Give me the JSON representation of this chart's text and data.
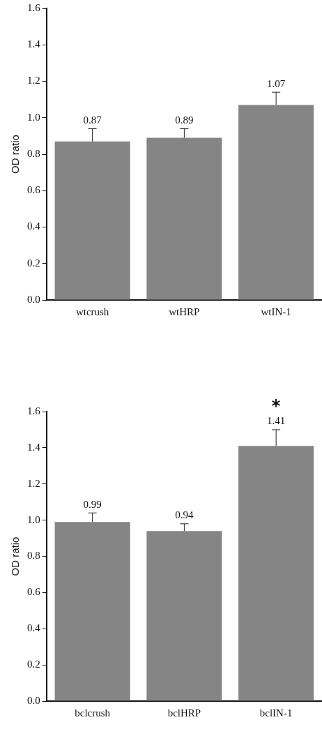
{
  "chart_data": [
    {
      "type": "bar",
      "ylabel": "OD ratio",
      "categories": [
        "wtcrush",
        "wtHRP",
        "wtIN-1"
      ],
      "values": [
        0.87,
        0.89,
        1.07
      ],
      "color": "#858585",
      "errors": [
        [
          0.87,
          0.94
        ],
        [
          0.89,
          0.94
        ],
        [
          1.07,
          1.14
        ]
      ],
      "data_labels": true,
      "ylim": [
        0,
        1.6
      ],
      "yticks": [
        {
          "value": 0,
          "label": "0.0"
        },
        {
          "value": 0.2,
          "label": "0.2"
        },
        {
          "value": 0.4,
          "label": "0.4"
        },
        {
          "value": 0.6,
          "label": "0.6"
        },
        {
          "value": 0.8,
          "label": "0.8"
        },
        {
          "value": 1,
          "label": "1.0"
        },
        {
          "value": 1.2,
          "label": "1.2"
        },
        {
          "value": 1.4,
          "label": "1.4"
        },
        {
          "value": 1.6,
          "label": "1.6"
        }
      ],
      "grid": false,
      "legend": false
    },
    {
      "type": "bar",
      "ylabel": "OD ratio",
      "categories": [
        "bclcrush",
        "bclHRP",
        "bclIN-1"
      ],
      "values": [
        0.99,
        0.94,
        1.41
      ],
      "color": "#858585",
      "errors": [
        [
          0.99,
          1.04
        ],
        [
          0.94,
          0.98
        ],
        [
          1.41,
          1.5
        ]
      ],
      "data_labels": true,
      "ylim": [
        0,
        1.6
      ],
      "yticks": [
        {
          "value": 0,
          "label": "0.0"
        },
        {
          "value": 0.2,
          "label": "0.2"
        },
        {
          "value": 0.4,
          "label": "0.4"
        },
        {
          "value": 0.6,
          "label": "0.6"
        },
        {
          "value": 0.8,
          "label": "0.8"
        },
        {
          "value": 1,
          "label": "1.0"
        },
        {
          "value": 1.2,
          "label": "1.2"
        },
        {
          "value": 1.4,
          "label": "1.4"
        },
        {
          "value": 1.6,
          "label": "1.6"
        }
      ],
      "grid": false,
      "legend": false,
      "annotations": [
        "*"
      ]
    }
  ]
}
